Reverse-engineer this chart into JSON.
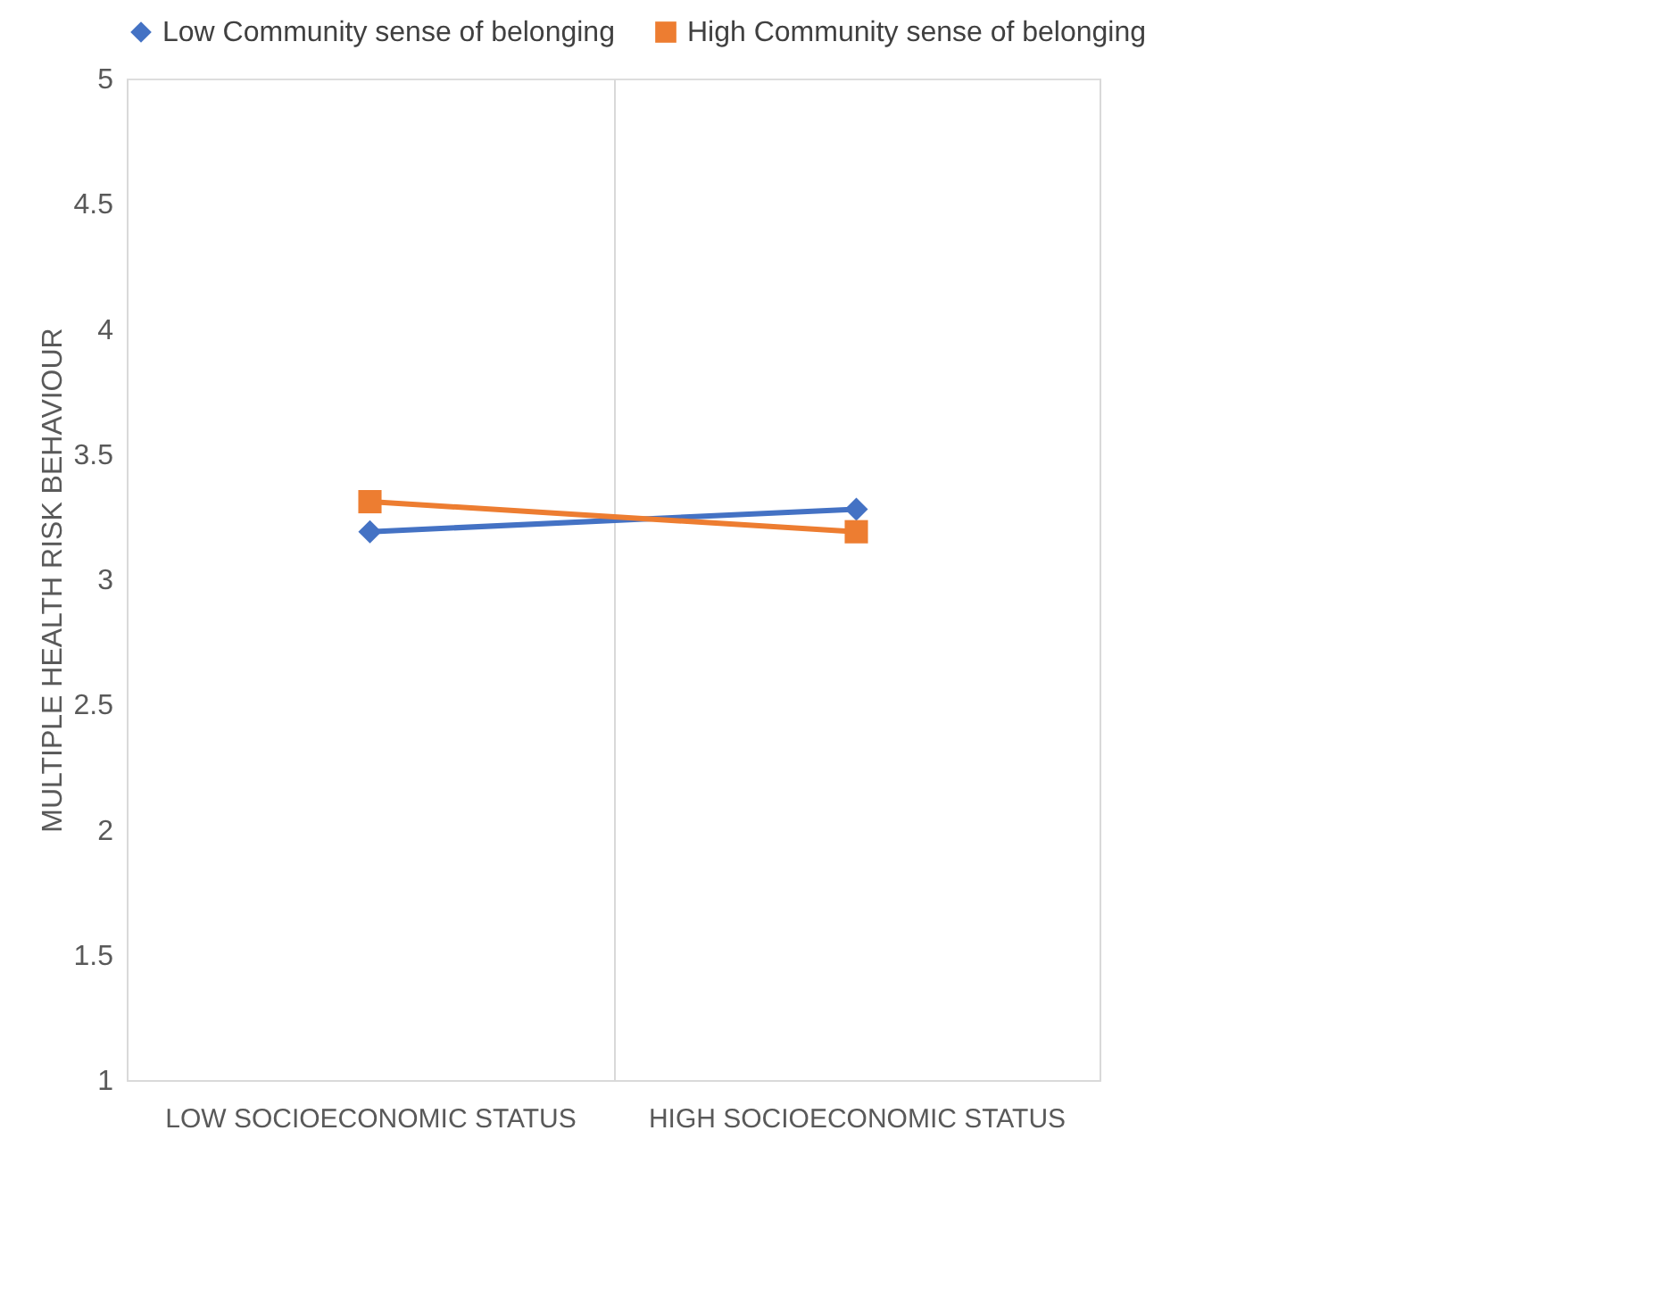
{
  "chart_data": {
    "type": "line",
    "ylabel": "MULTIPLE HEALTH RISK BEHAVIOUR",
    "categories": [
      "LOW SOCIOECONOMIC STATUS",
      "HIGH SOCIOECONOMIC STATUS"
    ],
    "series": [
      {
        "name": "Low Community sense of belonging",
        "color": "#4472c4",
        "values": [
          3.19,
          3.28
        ],
        "marker": "diamond"
      },
      {
        "name": "High Community sense of belonging",
        "color": "#ed7d31",
        "values": [
          3.31,
          3.19
        ],
        "marker": "square"
      }
    ],
    "ylim": [
      1,
      5
    ],
    "yticks": [
      1,
      1.5,
      2,
      2.5,
      3,
      3.5,
      4,
      4.5,
      5
    ],
    "grid": "x",
    "legend": "top",
    "line_style": "solid"
  }
}
